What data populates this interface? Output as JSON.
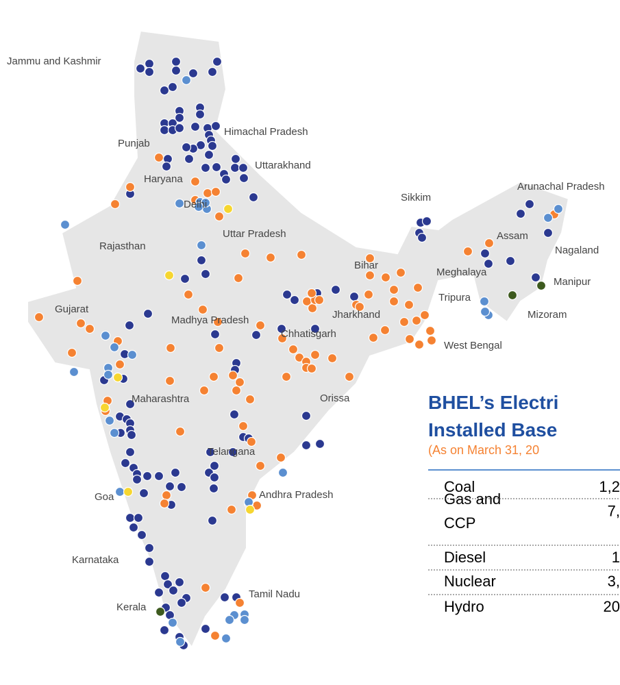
{
  "map": {
    "states": [
      "Jammu and Kashmir",
      "Punjab",
      "Himachal Pradesh",
      "Uttarakhand",
      "Haryana",
      "Delhi",
      "Uttar Pradesh",
      "Rajasthan",
      "Sikkim",
      "Arunachal Pradesh",
      "Assam",
      "Nagaland",
      "Meghalaya",
      "Bihar",
      "Manipur",
      "Tripura",
      "Mizoram",
      "Gujarat",
      "Madhya Pradesh",
      "Jharkhand",
      "Chhatisgarh",
      "West Bengal",
      "Maharashtra",
      "Orissa",
      "Telangana",
      "Goa",
      "Andhra Pradesh",
      "Karnataka",
      "Tamil Nadu",
      "Kerala"
    ]
  },
  "panel": {
    "title": [
      "BHEL’s Electri",
      "Installed Base"
    ],
    "subtitle": "(As on March 31, 20",
    "table": {
      "rows": [
        [
          "Coal",
          "1,2"
        ],
        [
          "Gas and CCP",
          "7,"
        ],
        [
          "Diesel",
          "1"
        ],
        [
          "Nuclear",
          "3,"
        ],
        [
          "Hydro",
          "20"
        ]
      ]
    }
  }
}
